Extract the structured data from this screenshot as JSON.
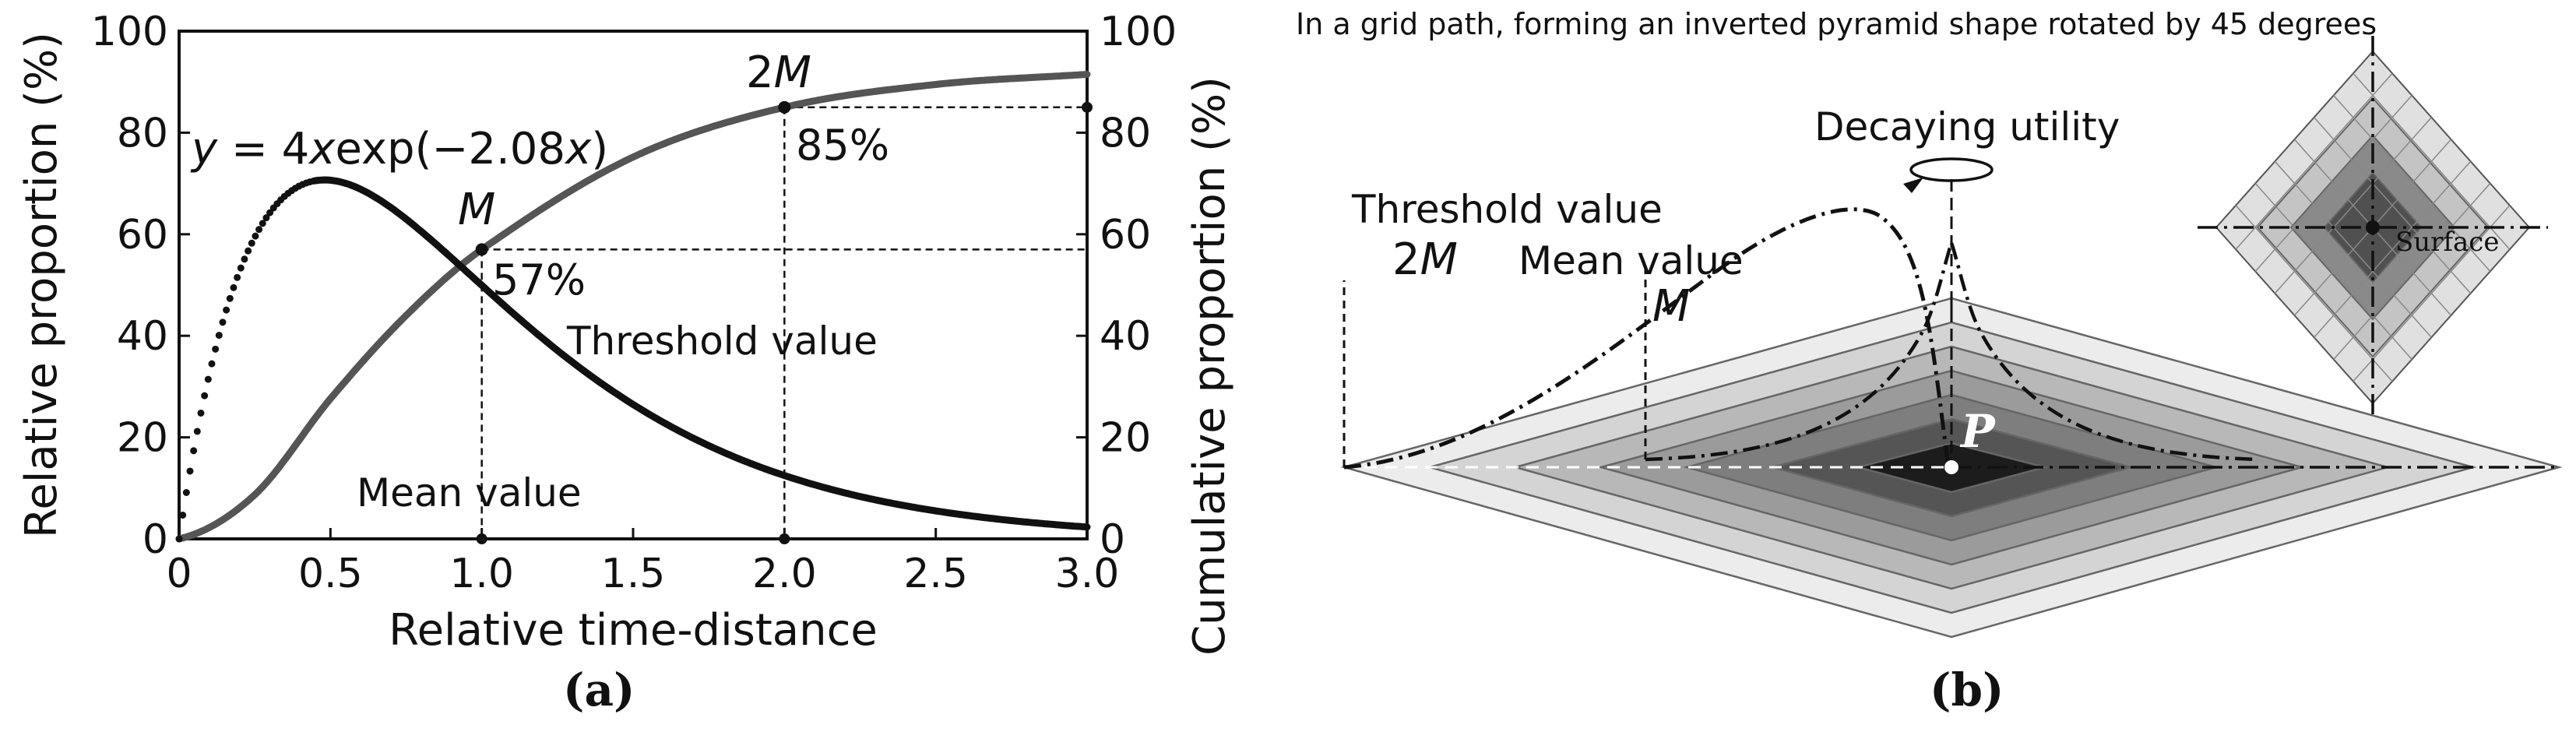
{
  "chart_data": [
    {
      "type": "line",
      "panel": "a",
      "panel_label": "(a)",
      "xlabel": "Relative time-distance",
      "ylabel_left": "Relative proportion (%)",
      "ylabel_right": "Cumulative proportion (%)",
      "xlim": [
        0,
        3.0
      ],
      "ylim": [
        0,
        100
      ],
      "x_ticks": [
        "0",
        "0.5",
        "1.0",
        "1.5",
        "2.0",
        "2.5",
        "3.0"
      ],
      "y_ticks": [
        "0",
        "20",
        "40",
        "60",
        "80",
        "100"
      ],
      "series": [
        {
          "name": "Relative proportion",
          "formula": "y = 4xexp(−2.08x)",
          "formula_parts": {
            "y": "y",
            "eq": " = 4",
            "x": "x",
            "rest": "exp(−2.08",
            "x2": "x",
            "close": ")"
          },
          "coefficient": 4,
          "decay": 2.08,
          "scale": 100,
          "x": [
            0,
            0.25,
            0.48,
            0.75,
            1.0,
            1.25,
            1.5,
            1.75,
            2.0,
            2.5,
            3.0
          ],
          "values": [
            0,
            59.4,
            70.7,
            63.1,
            50.0,
            37.1,
            26.4,
            18.3,
            12.5,
            5.5,
            2.3
          ],
          "color": "#111111"
        },
        {
          "name": "Cumulative proportion",
          "x": [
            0,
            0.25,
            0.5,
            0.75,
            1.0,
            1.5,
            2.0,
            2.5,
            3.0
          ],
          "values": [
            0,
            8.7,
            27.6,
            44.0,
            57,
            75.2,
            85,
            89.5,
            91.5
          ],
          "color": "#555555"
        }
      ],
      "annotations": {
        "M_mark": {
          "letter": "M",
          "x": 1.0,
          "cumulative": 57,
          "label": "57%"
        },
        "twoM_mark": {
          "prefix": "2",
          "letter": "M",
          "x": 2.0,
          "cumulative": 85,
          "label": "85%"
        },
        "threshold_value": "Threshold value",
        "mean_value": "Mean value"
      }
    },
    {
      "type": "diagram",
      "panel": "b",
      "panel_label": "(b)",
      "title": "In a grid path, forming an inverted pyramid shape rotated by 45 degrees",
      "labels": {
        "decaying_utility": "Decaying utility",
        "threshold_value": "Threshold value",
        "threshold_symbol_prefix": "2",
        "threshold_symbol_letter": "M",
        "mean_value": "Mean value",
        "mean_symbol": "M",
        "point": "P",
        "surface": "Surface"
      },
      "colors": {
        "layer_1": "#ececec",
        "layer_2": "#d4d4d4",
        "layer_3": "#b8b8b8",
        "layer_4": "#9b9b9b",
        "layer_5": "#7e7e7e",
        "layer_6": "#555555",
        "layer_7": "#1c1c1c"
      }
    }
  ]
}
